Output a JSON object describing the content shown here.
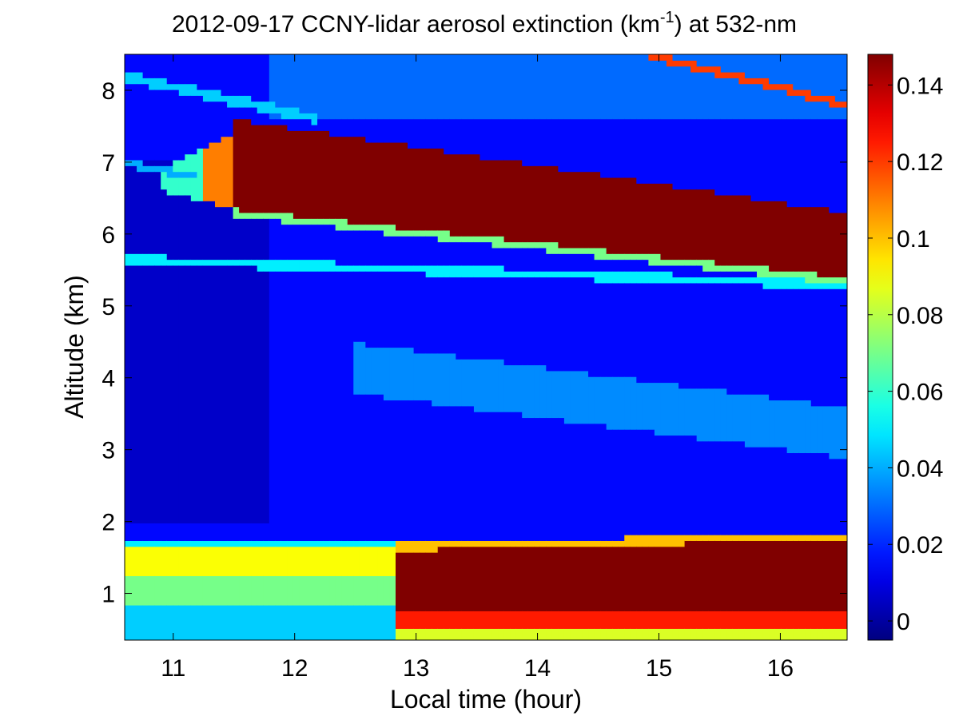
{
  "chart_data": {
    "type": "heatmap",
    "title": {
      "prefix": "2012-09-17 CCNY-lidar aerosol extinction (km",
      "superscript": "-1",
      "suffix": ") at 532-nm"
    },
    "xlabel": "Local time (hour)",
    "ylabel": "Altitude (km)",
    "xlim": [
      10.6,
      16.55
    ],
    "ylim": [
      0.35,
      8.5
    ],
    "x_ticks": [
      11,
      12,
      13,
      14,
      15,
      16
    ],
    "y_ticks": [
      1,
      2,
      3,
      4,
      5,
      6,
      7,
      8
    ],
    "colorbar": {
      "colormap": "jet",
      "clim": [
        -0.005,
        0.148
      ],
      "ticks": [
        0,
        0.02,
        0.04,
        0.06,
        0.08,
        0.1,
        0.12,
        0.14
      ],
      "tick_labels": [
        "0",
        "0.02",
        "0.04",
        "0.06",
        "0.08",
        "0.1",
        "0.12",
        "0.14"
      ]
    },
    "features": [
      {
        "name": "upper cloud layer",
        "value": 0.15,
        "x_start": 11.5,
        "x_end": 16.55,
        "base_km": [
          6.35,
          5.4
        ],
        "top_km": [
          7.6,
          6.3
        ]
      },
      {
        "name": "thin aerosol layer",
        "value": 0.05,
        "x_start": 10.6,
        "x_end": 16.55,
        "altitude_km": [
          5.65,
          5.3
        ]
      },
      {
        "name": "boundary layer",
        "value": 0.09,
        "x_start": 10.6,
        "x_end": 12.85,
        "base_km": 0.35,
        "top_km": 1.75
      },
      {
        "name": "boundary layer",
        "value": 0.15,
        "x_start": 12.85,
        "x_end": 16.55,
        "base_km": 0.35,
        "top_km": [
          1.7,
          1.85
        ]
      }
    ]
  }
}
